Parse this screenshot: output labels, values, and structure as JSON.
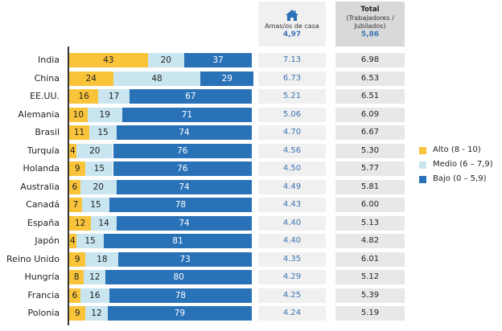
{
  "chart_data": {
    "type": "bar",
    "orientation": "horizontal",
    "stacked": true,
    "unit": "percent",
    "categories": [
      "India",
      "China",
      "EE.UU.",
      "Alemania",
      "Brasil",
      "Turquía",
      "Holanda",
      "Australia",
      "Canadá",
      "España",
      "Japón",
      "Reino Unido",
      "Hungría",
      "Francia",
      "Polonia"
    ],
    "series": [
      {
        "name": "Alto (8 - 10)",
        "color": "#f9c43a",
        "values": [
          43,
          24,
          16,
          10,
          11,
          4,
          9,
          6,
          7,
          12,
          4,
          9,
          8,
          6,
          9
        ]
      },
      {
        "name": "Medio (6 – 7,9)",
        "color": "#c9e6f0",
        "values": [
          20,
          48,
          17,
          19,
          15,
          20,
          15,
          20,
          15,
          14,
          15,
          18,
          12,
          16,
          12
        ]
      },
      {
        "name": "Bajo (0 – 5,9)",
        "color": "#2a72b8",
        "values": [
          37,
          29,
          67,
          71,
          74,
          76,
          76,
          74,
          78,
          74,
          81,
          73,
          80,
          78,
          79
        ]
      }
    ],
    "xlim": [
      0,
      100
    ],
    "legend_position": "right",
    "grid": false,
    "table_columns": [
      {
        "label": "Amas/os de casa",
        "icon": "house-icon",
        "summary_value": "4,97",
        "values": [
          "7.13",
          "6.73",
          "5.21",
          "5.06",
          "4.70",
          "4.56",
          "4.50",
          "4.49",
          "4.43",
          "4.40",
          "4.40",
          "4.35",
          "4.29",
          "4.25",
          "4.24"
        ]
      },
      {
        "title": "Total",
        "label": "(Trabajadores / Jubilados)",
        "label_line1": "(Trabajadores /",
        "label_line2": "Jubilados)",
        "summary_value": "5,86",
        "values": [
          "6.98",
          "6.53",
          "6.51",
          "6.09",
          "6.67",
          "5.30",
          "5.77",
          "5.81",
          "6.00",
          "5.13",
          "4.82",
          "6.01",
          "5.12",
          "5.39",
          "5.19"
        ]
      }
    ]
  },
  "legend": [
    {
      "label": "Alto (8 - 10)",
      "color": "#f9c43a"
    },
    {
      "label": "Medio (6 – 7,9)",
      "color": "#c9e6f0"
    },
    {
      "label": "Bajo (0 – 5,9)",
      "color": "#2a72b8"
    }
  ]
}
